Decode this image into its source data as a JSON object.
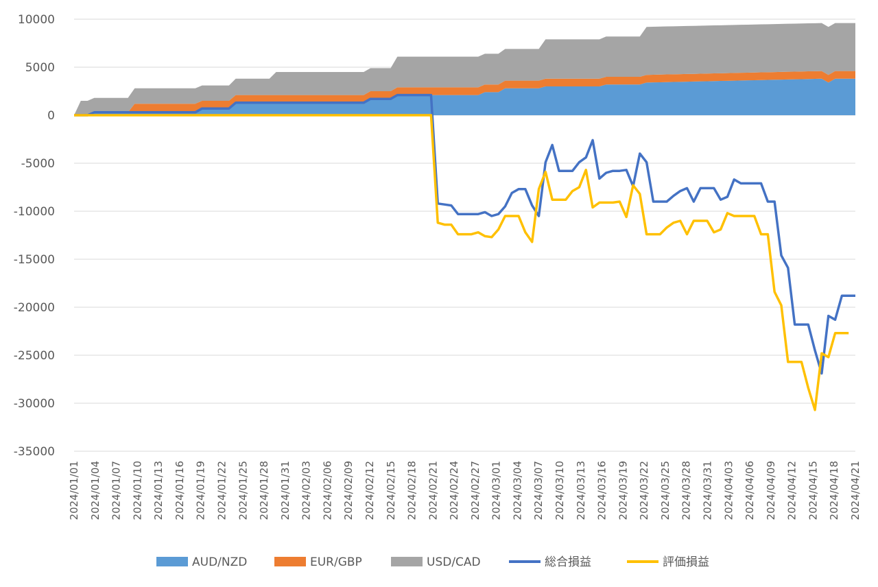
{
  "chart_data": {
    "type": "area+line",
    "title": "",
    "xlabel": "",
    "ylabel": "",
    "ylim": [
      -35000,
      10000
    ],
    "yticks": [
      10000,
      5000,
      0,
      -5000,
      -10000,
      -15000,
      -20000,
      -25000,
      -30000,
      -35000
    ],
    "grid": true,
    "legend_position": "bottom",
    "x_tick_labels": [
      "2024/01/01",
      "2024/01/04",
      "2024/01/07",
      "2024/01/10",
      "2024/01/13",
      "2024/01/16",
      "2024/01/19",
      "2024/01/22",
      "2024/01/25",
      "2024/01/28",
      "2024/01/31",
      "2024/02/03",
      "2024/02/06",
      "2024/02/09",
      "2024/02/12",
      "2024/02/15",
      "2024/02/18",
      "2024/02/21",
      "2024/02/24",
      "2024/02/27",
      "2024/03/01",
      "2024/03/04",
      "2024/03/07",
      "2024/03/10",
      "2024/03/13",
      "2024/03/16",
      "2024/03/19",
      "2024/03/22",
      "2024/03/25",
      "2024/03/28",
      "2024/03/31",
      "2024/04/03",
      "2024/04/06",
      "2024/04/09",
      "2024/04/12",
      "2024/04/15",
      "2024/04/18",
      "2024/04/21"
    ],
    "stacked_areas": [
      {
        "name": "AUD/NZD",
        "color": "#5B9BD5",
        "points": [
          [
            0,
            0
          ],
          [
            2,
            0
          ],
          [
            3,
            300
          ],
          [
            18,
            300
          ],
          [
            19,
            700
          ],
          [
            23,
            700
          ],
          [
            24,
            1300
          ],
          [
            43,
            1300
          ],
          [
            44,
            1700
          ],
          [
            47,
            1700
          ],
          [
            48,
            2100
          ],
          [
            52,
            2100
          ],
          [
            53,
            2100
          ],
          [
            60,
            2100
          ],
          [
            61,
            2400
          ],
          [
            63,
            2400
          ],
          [
            64,
            2800
          ],
          [
            69,
            2800
          ],
          [
            70,
            3000
          ],
          [
            78,
            3000
          ],
          [
            79,
            3200
          ],
          [
            84,
            3200
          ],
          [
            85,
            3400
          ],
          [
            112,
            3400
          ],
          [
            113,
            3800
          ],
          [
            111,
            3800
          ]
        ]
      },
      {
        "name": "EUR/GBP",
        "color": "#ED7D31",
        "points": [
          [
            0,
            0
          ],
          [
            8,
            0
          ],
          [
            9,
            900
          ],
          [
            18,
            900
          ],
          [
            19,
            800
          ],
          [
            23,
            800
          ],
          [
            24,
            800
          ],
          [
            43,
            800
          ],
          [
            44,
            800
          ],
          [
            47,
            800
          ],
          [
            48,
            800
          ],
          [
            52,
            800
          ],
          [
            53,
            800
          ],
          [
            60,
            800
          ],
          [
            61,
            800
          ],
          [
            63,
            800
          ],
          [
            64,
            800
          ],
          [
            69,
            800
          ],
          [
            70,
            800
          ],
          [
            78,
            800
          ],
          [
            79,
            800
          ],
          [
            84,
            800
          ],
          [
            85,
            800
          ],
          [
            112,
            800
          ],
          [
            113,
            800
          ],
          [
            111,
            800
          ]
        ]
      },
      {
        "name": "USD/CAD",
        "color": "#A5A5A5",
        "points": [
          [
            0,
            0
          ],
          [
            1,
            1500
          ],
          [
            2,
            1500
          ],
          [
            3,
            1500
          ],
          [
            8,
            1500
          ],
          [
            9,
            1600
          ],
          [
            18,
            1600
          ],
          [
            19,
            1600
          ],
          [
            23,
            1600
          ],
          [
            24,
            1700
          ],
          [
            29,
            1700
          ],
          [
            30,
            2400
          ],
          [
            43,
            2400
          ],
          [
            44,
            2400
          ],
          [
            47,
            2400
          ],
          [
            48,
            3200
          ],
          [
            52,
            3200
          ],
          [
            53,
            3200
          ],
          [
            60,
            3200
          ],
          [
            61,
            3200
          ],
          [
            63,
            3200
          ],
          [
            64,
            3300
          ],
          [
            69,
            3300
          ],
          [
            70,
            4100
          ],
          [
            78,
            4100
          ],
          [
            79,
            4200
          ],
          [
            84,
            4200
          ],
          [
            85,
            5000
          ],
          [
            112,
            5000
          ],
          [
            113,
            5000
          ],
          [
            111,
            5000
          ]
        ]
      }
    ],
    "line_series": [
      {
        "name": "総合損益",
        "color": "#4472C4",
        "points": [
          [
            0,
            0
          ],
          [
            2,
            0
          ],
          [
            3,
            300
          ],
          [
            18,
            300
          ],
          [
            19,
            700
          ],
          [
            23,
            700
          ],
          [
            24,
            1300
          ],
          [
            43,
            1300
          ],
          [
            44,
            1700
          ],
          [
            47,
            1700
          ],
          [
            48,
            2100
          ],
          [
            52,
            2100
          ],
          [
            53,
            2100
          ],
          [
            54,
            -9200
          ],
          [
            55,
            -9300
          ],
          [
            56,
            -9400
          ],
          [
            57,
            -10300
          ],
          [
            58,
            -10300
          ],
          [
            59,
            -10300
          ],
          [
            60,
            -10300
          ],
          [
            61,
            -10100
          ],
          [
            62,
            -10500
          ],
          [
            63,
            -10300
          ],
          [
            64,
            -9500
          ],
          [
            65,
            -8100
          ],
          [
            66,
            -7700
          ],
          [
            67,
            -7700
          ],
          [
            68,
            -9400
          ],
          [
            69,
            -10500
          ],
          [
            70,
            -4900
          ],
          [
            71,
            -3100
          ],
          [
            72,
            -5800
          ],
          [
            73,
            -5800
          ],
          [
            74,
            -5800
          ],
          [
            75,
            -4900
          ],
          [
            76,
            -4400
          ],
          [
            77,
            -2600
          ],
          [
            78,
            -6600
          ],
          [
            79,
            -6000
          ],
          [
            80,
            -5800
          ],
          [
            81,
            -5800
          ],
          [
            82,
            -5700
          ],
          [
            83,
            -7400
          ],
          [
            84,
            -4000
          ],
          [
            85,
            -4900
          ],
          [
            86,
            -9000
          ],
          [
            87,
            -9000
          ],
          [
            88,
            -9000
          ],
          [
            89,
            -8400
          ],
          [
            90,
            -7900
          ],
          [
            91,
            -7600
          ],
          [
            92,
            -9000
          ],
          [
            93,
            -7600
          ],
          [
            94,
            -7600
          ],
          [
            95,
            -7600
          ],
          [
            96,
            -8800
          ],
          [
            97,
            -8500
          ],
          [
            98,
            -6700
          ],
          [
            99,
            -7100
          ],
          [
            100,
            -7100
          ],
          [
            101,
            -7100
          ],
          [
            102,
            -7100
          ],
          [
            103,
            -9000
          ],
          [
            104,
            -9000
          ],
          [
            105,
            -14600
          ],
          [
            106,
            -15900
          ],
          [
            107,
            -21800
          ],
          [
            108,
            -21800
          ],
          [
            109,
            -21800
          ],
          [
            110,
            -24500
          ],
          [
            111,
            -26900
          ],
          [
            112,
            -20900
          ],
          [
            113,
            -21300
          ],
          [
            114,
            -18800
          ],
          [
            115,
            -18800
          ],
          [
            116,
            -18800
          ]
        ]
      },
      {
        "name": "評価損益",
        "color": "#FFC000",
        "points": [
          [
            0,
            0
          ],
          [
            53,
            0
          ],
          [
            54,
            -11200
          ],
          [
            55,
            -11400
          ],
          [
            56,
            -11400
          ],
          [
            57,
            -12400
          ],
          [
            58,
            -12400
          ],
          [
            59,
            -12400
          ],
          [
            60,
            -12200
          ],
          [
            61,
            -12600
          ],
          [
            62,
            -12700
          ],
          [
            63,
            -11900
          ],
          [
            64,
            -10500
          ],
          [
            65,
            -10500
          ],
          [
            66,
            -10500
          ],
          [
            67,
            -12200
          ],
          [
            68,
            -13200
          ],
          [
            69,
            -7700
          ],
          [
            70,
            -5900
          ],
          [
            71,
            -8800
          ],
          [
            72,
            -8800
          ],
          [
            73,
            -8800
          ],
          [
            74,
            -7900
          ],
          [
            75,
            -7500
          ],
          [
            76,
            -5700
          ],
          [
            77,
            -9600
          ],
          [
            78,
            -9100
          ],
          [
            79,
            -9100
          ],
          [
            80,
            -9100
          ],
          [
            81,
            -9000
          ],
          [
            82,
            -10600
          ],
          [
            83,
            -7300
          ],
          [
            84,
            -8200
          ],
          [
            85,
            -12400
          ],
          [
            86,
            -12400
          ],
          [
            87,
            -12400
          ],
          [
            88,
            -11700
          ],
          [
            89,
            -11200
          ],
          [
            90,
            -11000
          ],
          [
            91,
            -12400
          ],
          [
            92,
            -11000
          ],
          [
            93,
            -11000
          ],
          [
            94,
            -11000
          ],
          [
            95,
            -12200
          ],
          [
            96,
            -11900
          ],
          [
            97,
            -10200
          ],
          [
            98,
            -10500
          ],
          [
            99,
            -10500
          ],
          [
            100,
            -10500
          ],
          [
            101,
            -10500
          ],
          [
            102,
            -12400
          ],
          [
            103,
            -12400
          ],
          [
            104,
            -18400
          ],
          [
            105,
            -19800
          ],
          [
            106,
            -25700
          ],
          [
            107,
            -25700
          ],
          [
            108,
            -25700
          ],
          [
            109,
            -28400
          ],
          [
            110,
            -30700
          ],
          [
            111,
            -24800
          ],
          [
            112,
            -25200
          ],
          [
            113,
            -22700
          ],
          [
            114,
            -22700
          ],
          [
            115,
            -22700
          ]
        ]
      }
    ]
  },
  "legend": {
    "items": [
      {
        "label": "AUD/NZD",
        "color": "#5B9BD5",
        "kind": "area"
      },
      {
        "label": "EUR/GBP",
        "color": "#ED7D31",
        "kind": "area"
      },
      {
        "label": "USD/CAD",
        "color": "#A5A5A5",
        "kind": "area"
      },
      {
        "label": "総合損益",
        "color": "#4472C4",
        "kind": "line"
      },
      {
        "label": "評価損益",
        "color": "#FFC000",
        "kind": "line"
      }
    ]
  }
}
